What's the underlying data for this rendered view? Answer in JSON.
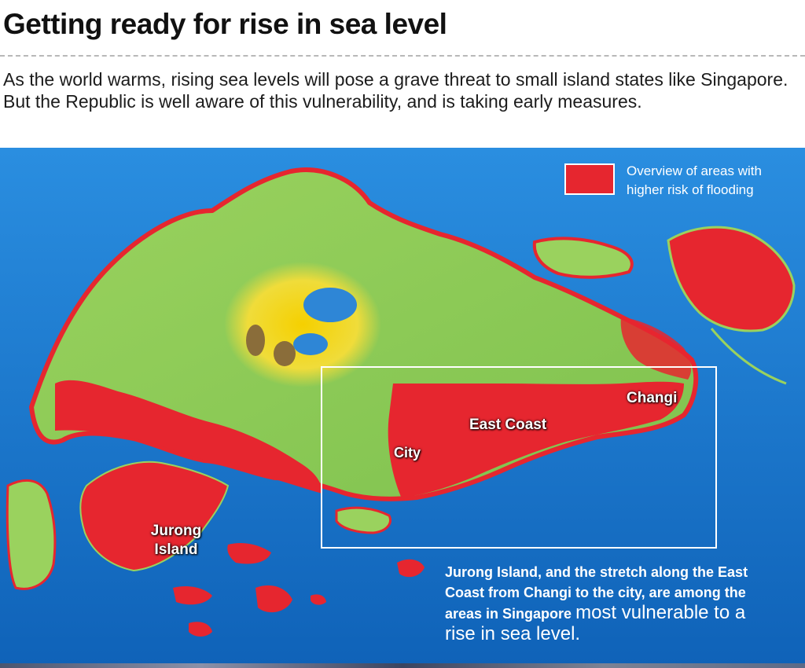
{
  "headline": "Getting ready for rise in sea level",
  "standfirst": "As the world warms, rising sea levels will pose a grave threat to small island states like Singapore. But the Republic is well aware of this vulnerability, and is taking early measures.",
  "legend": {
    "label": "Overview of areas with higher risk of flooding",
    "color": "#e6262f"
  },
  "places": {
    "changi": "Changi",
    "east_coast": "East Coast",
    "city": "City",
    "jurong_island": "Jurong Island"
  },
  "note": {
    "text": "Jurong Island, and the stretch along the East Coast from Changi to the city, are among the areas in Singapore",
    "emphasis": "most vulnerable to a rise in sea level."
  },
  "colors": {
    "sea": "#1a7fd4",
    "land": "#8fcf5a",
    "highlands": "#f1d21a",
    "flood_risk": "#e6262f"
  }
}
